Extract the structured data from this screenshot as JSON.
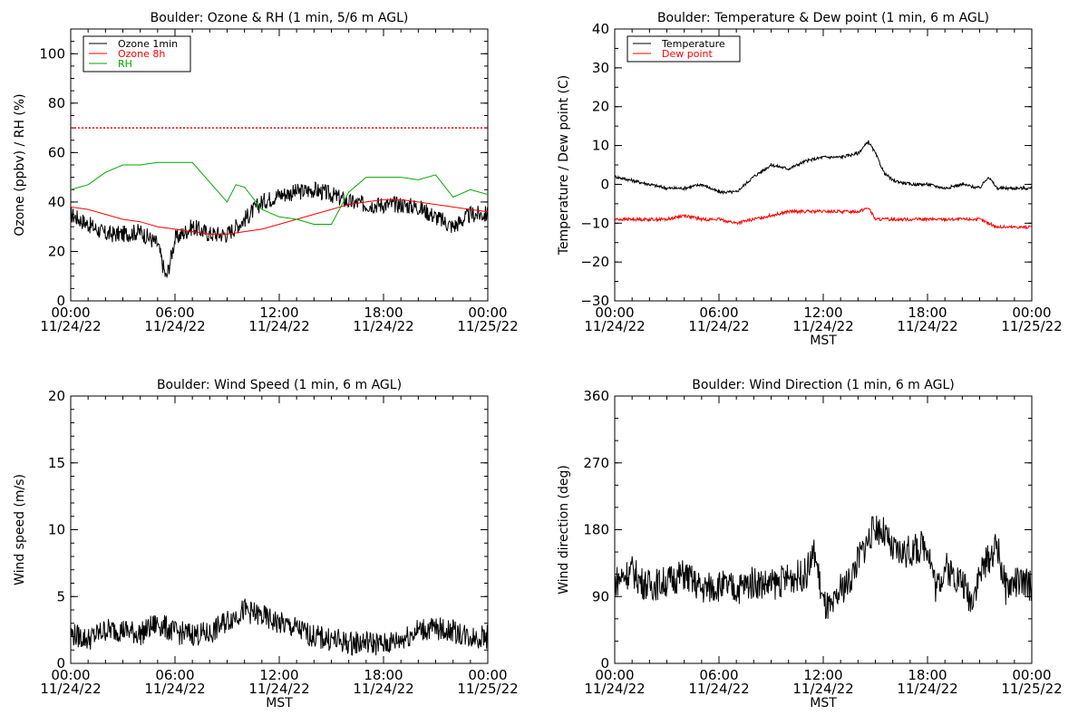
{
  "chart_data": [
    {
      "type": "line",
      "title": "Boulder: Ozone & RH (1 min, 5/6 m AGL)",
      "ylabel": "Ozone (ppbv) / RH (%)",
      "xlabel": "",
      "xlim": [
        "11/24/22 00:00",
        "11/25/22 00:00"
      ],
      "ylim": [
        0,
        110
      ],
      "yticks": [
        "0",
        "20",
        "40",
        "60",
        "80",
        "100"
      ],
      "xticks": [
        {
          "time": "00:00",
          "date": "11/24/22"
        },
        {
          "time": "06:00",
          "date": "11/24/22"
        },
        {
          "time": "12:00",
          "date": "11/24/22"
        },
        {
          "time": "18:00",
          "date": "11/24/22"
        },
        {
          "time": "00:00",
          "date": "11/25/22"
        }
      ],
      "legend": "top-left",
      "reference_lines": [
        {
          "y": 70,
          "color": "#ff0000",
          "style": "dotted"
        }
      ],
      "series": [
        {
          "name": "Ozone 1min",
          "color": "#000000",
          "x": [
            0,
            1,
            2,
            3,
            4,
            5,
            5.5,
            6,
            7,
            8,
            9,
            10,
            11,
            12,
            13,
            14,
            15,
            16,
            17,
            18,
            19,
            20,
            21,
            22,
            23,
            24
          ],
          "y": [
            35,
            31,
            27,
            27,
            28,
            23,
            9,
            25,
            30,
            27,
            27,
            33,
            40,
            43,
            44,
            45,
            43,
            40,
            39,
            39,
            39,
            38,
            34,
            30,
            35,
            35
          ]
        },
        {
          "name": "Ozone 8h",
          "color": "#ff0000",
          "x": [
            0,
            1,
            2,
            3,
            4,
            5,
            6,
            7,
            8,
            9,
            10,
            11,
            12,
            13,
            14,
            15,
            16,
            17,
            18,
            19,
            20,
            21,
            22,
            23,
            24
          ],
          "y": [
            38,
            37,
            35,
            33,
            32,
            30,
            29,
            28,
            27,
            27,
            28,
            29,
            31,
            33,
            35,
            37,
            39,
            40,
            41,
            41,
            40,
            39,
            38,
            37,
            36
          ]
        },
        {
          "name": "RH",
          "color": "#00aa00",
          "x": [
            0,
            1,
            2,
            3,
            4,
            5,
            6,
            7,
            8,
            9,
            9.5,
            10,
            11,
            12,
            13,
            14,
            15,
            16,
            17,
            18,
            19,
            20,
            21,
            22,
            23,
            24
          ],
          "y": [
            45,
            47,
            52,
            55,
            55,
            56,
            56,
            56,
            48,
            40,
            47,
            46,
            37,
            34,
            33,
            31,
            31,
            44,
            50,
            50,
            50,
            49,
            51,
            42,
            45,
            43
          ]
        }
      ]
    },
    {
      "type": "line",
      "title": "Boulder: Temperature & Dew point (1 min, 6 m AGL)",
      "ylabel": "Temperature / Dew point (C)",
      "xlabel": "MST",
      "xlim": [
        "11/24/22 00:00",
        "11/25/22 00:00"
      ],
      "ylim": [
        -30,
        40
      ],
      "yticks": [
        "−30",
        "−20",
        "−10",
        "0",
        "10",
        "20",
        "30",
        "40"
      ],
      "xticks": [
        {
          "time": "00:00",
          "date": "11/24/22"
        },
        {
          "time": "06:00",
          "date": "11/24/22"
        },
        {
          "time": "12:00",
          "date": "11/24/22"
        },
        {
          "time": "18:00",
          "date": "11/24/22"
        },
        {
          "time": "00:00",
          "date": "11/25/22"
        }
      ],
      "legend": "top-left",
      "series": [
        {
          "name": "Temperature",
          "color": "#000000",
          "x": [
            0,
            1,
            2,
            3,
            4,
            5,
            6,
            7,
            8,
            9,
            10,
            11,
            12,
            13,
            14,
            14.6,
            15,
            15.5,
            16,
            17,
            18,
            19,
            20,
            21,
            21.5,
            22,
            23,
            24
          ],
          "y": [
            2,
            1,
            0,
            -1,
            -1,
            0,
            -2,
            -2,
            2,
            5,
            4,
            6,
            7,
            7,
            8,
            11,
            8,
            3,
            1,
            0,
            0,
            -1,
            0,
            -1,
            2,
            -1,
            -1,
            -1
          ]
        },
        {
          "name": "Dew point",
          "color": "#ff0000",
          "x": [
            0,
            1,
            2,
            3,
            4,
            5,
            6,
            7,
            8,
            9,
            10,
            11,
            12,
            13,
            14,
            14.6,
            15,
            16,
            17,
            18,
            19,
            20,
            21,
            21.5,
            22,
            23,
            24
          ],
          "y": [
            -9,
            -9,
            -9,
            -9,
            -8,
            -9,
            -9,
            -10,
            -9,
            -8,
            -7,
            -7,
            -7,
            -7,
            -7,
            -6,
            -9,
            -9,
            -9,
            -9,
            -9,
            -9,
            -9,
            -10,
            -11,
            -11,
            -11
          ]
        }
      ]
    },
    {
      "type": "line",
      "title": "Boulder: Wind Speed (1 min, 6 m AGL)",
      "ylabel": "Wind speed (m/s)",
      "xlabel": "MST",
      "xlim": [
        "11/24/22 00:00",
        "11/25/22 00:00"
      ],
      "ylim": [
        0,
        20
      ],
      "yticks": [
        "0",
        "5",
        "10",
        "15",
        "20"
      ],
      "xticks": [
        {
          "time": "00:00",
          "date": "11/24/22"
        },
        {
          "time": "06:00",
          "date": "11/24/22"
        },
        {
          "time": "12:00",
          "date": "11/24/22"
        },
        {
          "time": "18:00",
          "date": "11/24/22"
        },
        {
          "time": "00:00",
          "date": "11/25/22"
        }
      ],
      "series": [
        {
          "name": "",
          "color": "#000000",
          "x": [
            0,
            1,
            2,
            3,
            4,
            5,
            6,
            7,
            8,
            9,
            10,
            11,
            12,
            13,
            14,
            15,
            16,
            17,
            18,
            19,
            20,
            21,
            22,
            23,
            24
          ],
          "y": [
            2.2,
            1.8,
            2.5,
            2.5,
            2.2,
            3,
            2.3,
            2.2,
            2.2,
            3.2,
            4,
            3.5,
            3,
            2.6,
            2,
            1.8,
            1.5,
            1.6,
            1.4,
            1.8,
            2.5,
            2.6,
            2.4,
            2,
            2
          ]
        }
      ]
    },
    {
      "type": "line",
      "title": "Boulder: Wind Direction (1 min, 6 m AGL)",
      "ylabel": "Wind direction (deg)",
      "xlabel": "MST",
      "xlim": [
        "11/24/22 00:00",
        "11/25/22 00:00"
      ],
      "ylim": [
        0,
        360
      ],
      "yticks": [
        "0",
        "90",
        "180",
        "270",
        "360"
      ],
      "xticks": [
        {
          "time": "00:00",
          "date": "11/24/22"
        },
        {
          "time": "06:00",
          "date": "11/24/22"
        },
        {
          "time": "12:00",
          "date": "11/24/22"
        },
        {
          "time": "18:00",
          "date": "11/24/22"
        },
        {
          "time": "00:00",
          "date": "11/25/22"
        }
      ],
      "series": [
        {
          "name": "",
          "color": "#000000",
          "x": [
            0,
            1,
            1.5,
            2,
            3,
            4,
            5,
            6,
            7,
            8,
            9,
            10,
            11,
            11.5,
            12,
            12.5,
            13,
            13.5,
            14,
            15,
            15.5,
            16,
            17,
            18,
            18.5,
            19,
            20,
            20.5,
            21,
            22,
            22.5,
            23,
            24
          ],
          "y": [
            110,
            125,
            110,
            105,
            110,
            120,
            100,
            105,
            100,
            110,
            105,
            115,
            120,
            150,
            80,
            70,
            100,
            110,
            140,
            185,
            175,
            150,
            150,
            160,
            100,
            130,
            110,
            85,
            120,
            160,
            100,
            110,
            105
          ]
        }
      ]
    }
  ]
}
